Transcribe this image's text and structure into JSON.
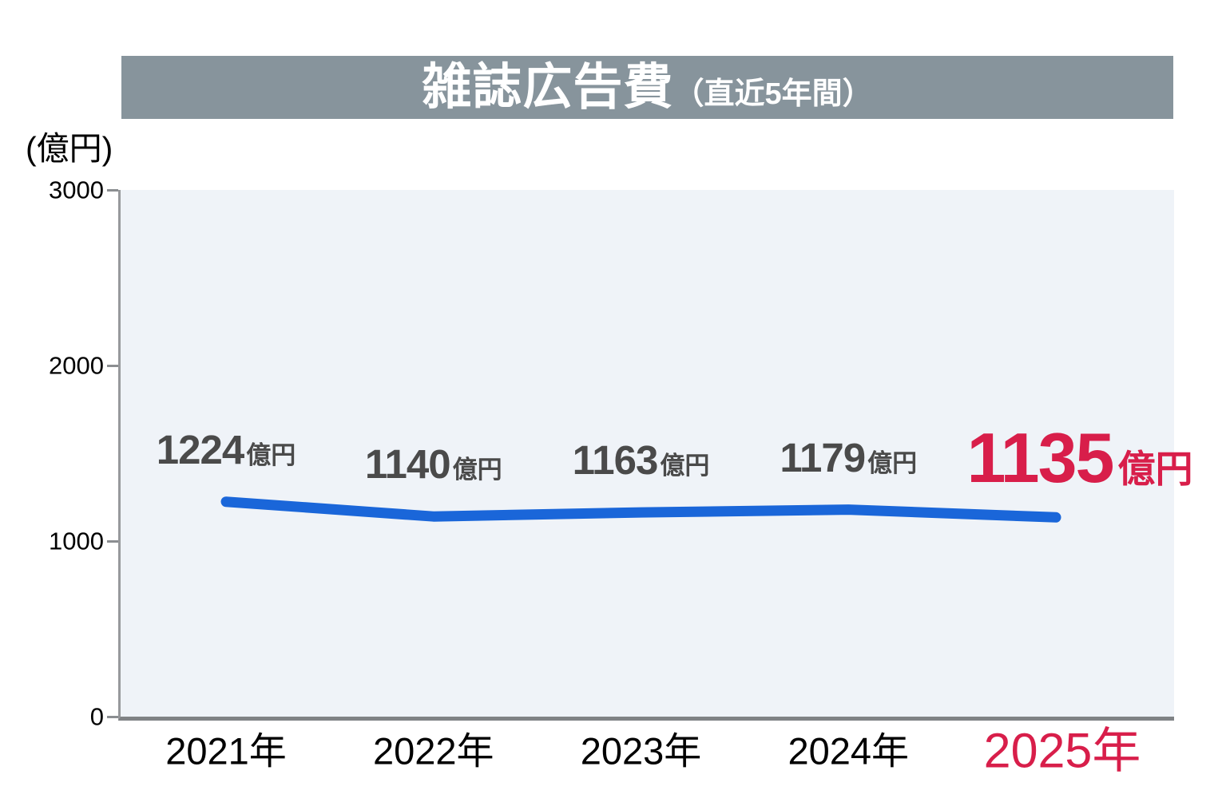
{
  "header": {
    "title": "雑誌広告費",
    "subtitle": "（直近5年間）"
  },
  "chart_data": {
    "type": "line",
    "title": "雑誌広告費（直近5年間）",
    "ylabel": "(億円)",
    "xlabel": "",
    "categories": [
      "2021年",
      "2022年",
      "2023年",
      "2024年",
      "2025年"
    ],
    "values": [
      1224,
      1140,
      1163,
      1179,
      1135
    ],
    "value_unit": "億円",
    "value_labels": [
      "1224億円",
      "1140億円",
      "1163億円",
      "1179億円",
      "1135億円"
    ],
    "ylim": [
      0,
      3000
    ],
    "yticks": [
      0,
      1000,
      2000,
      3000
    ],
    "grid": false,
    "legend": "none",
    "highlight_index": 4,
    "colors": {
      "line": "#1a66d9",
      "data_label": "#4a4a4a",
      "highlight": "#d81e4a",
      "header_bg": "#87949c",
      "header_text": "#ffffff",
      "plot_bg": "#eff3f8",
      "axis": "#8b8e91"
    }
  }
}
